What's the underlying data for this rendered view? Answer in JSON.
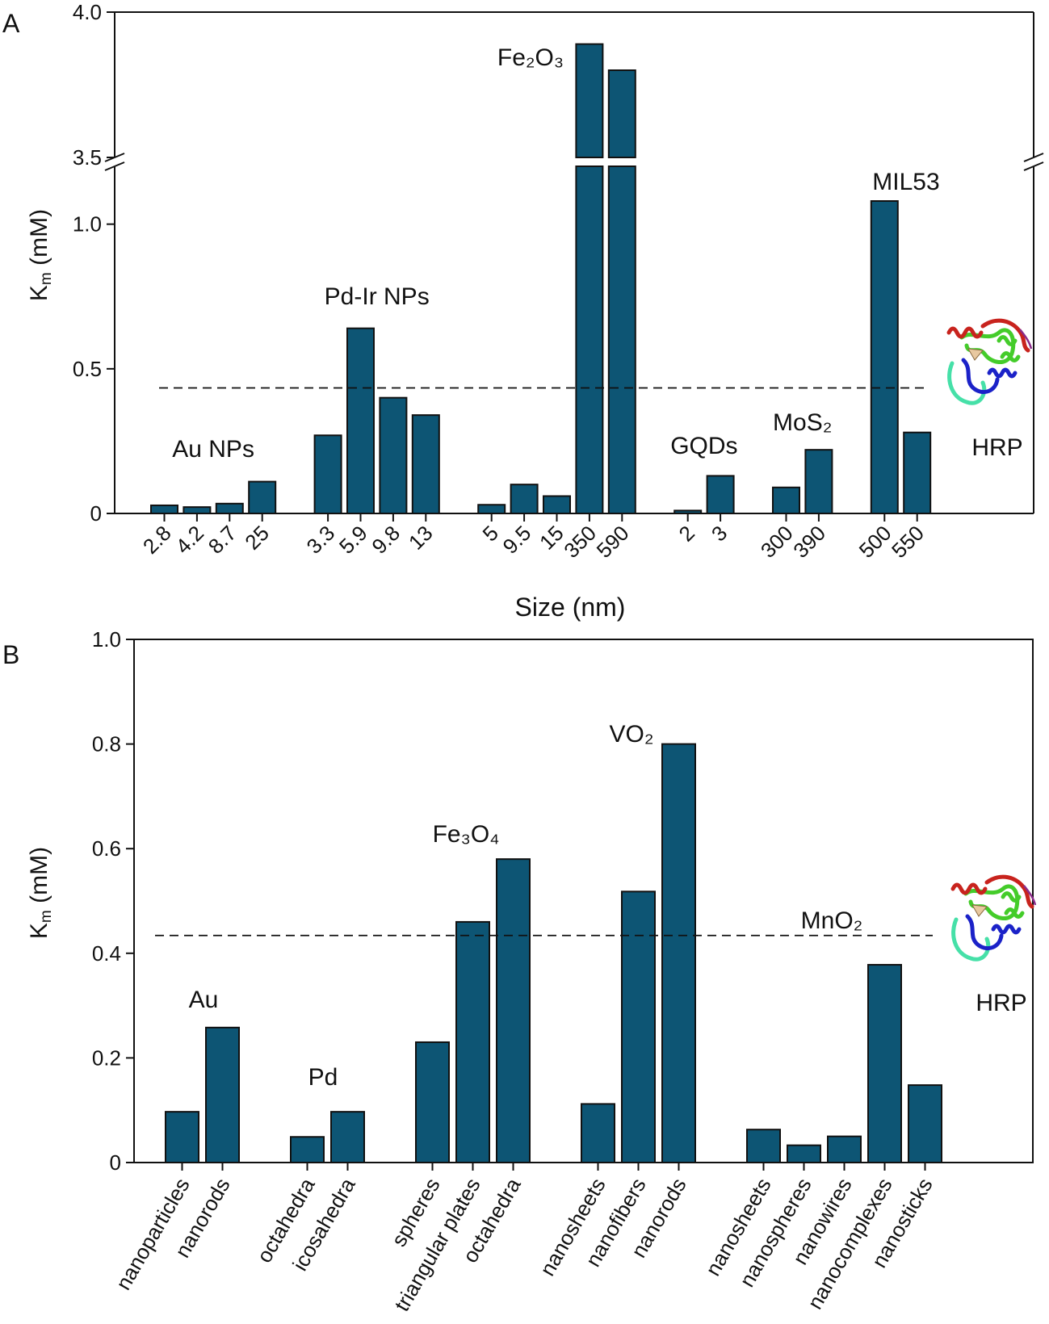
{
  "colors": {
    "bar_fill": "#0d5574",
    "bar_stroke": "#111111",
    "axis": "#111111",
    "reference_line": "#111111",
    "hrp_red": "#c8231d",
    "hrp_green": "#44cc2a",
    "hrp_cyan": "#46e0a8",
    "hrp_blue": "#1b22c8",
    "hrp_magenta": "#8a2b8a"
  },
  "chart_data": [
    {
      "panel": "A",
      "type": "bar",
      "xlabel": "Size (nm)",
      "ylabel_main": "K",
      "ylabel_sub": "m",
      "ylabel_unit": " (mM)",
      "lower_ylim": [
        0,
        1.2
      ],
      "upper_ylim": [
        3.5,
        4.0
      ],
      "y_ticks_lower": [
        {
          "value": 0,
          "label": "0"
        },
        {
          "value": 0.5,
          "label": "0.5"
        },
        {
          "value": 1.0,
          "label": "1.0"
        }
      ],
      "y_ticks_upper": [
        {
          "value": 3.5,
          "label": "3.5"
        },
        {
          "value": 4.0,
          "label": "4.0"
        }
      ],
      "reference_value": 0.434,
      "reference_label": "HRP",
      "groups": [
        {
          "name": "Au NPs",
          "categories": [
            "2.8",
            "4.2",
            "8.7",
            "25"
          ],
          "values": [
            0.028,
            0.022,
            0.034,
            0.11
          ]
        },
        {
          "name": "Pd-Ir NPs",
          "categories": [
            "3.3",
            "5.9",
            "9.8",
            "13"
          ],
          "values": [
            0.27,
            0.64,
            0.4,
            0.34
          ]
        },
        {
          "name": "Fe₂O₃",
          "categories": [
            "5",
            "9.5",
            "15",
            "350",
            "590"
          ],
          "values": [
            0.03,
            0.1,
            0.06,
            3.89,
            3.8
          ]
        },
        {
          "name": "GQDs",
          "categories": [
            "2",
            "3"
          ],
          "values": [
            0.01,
            0.13
          ]
        },
        {
          "name": "MoS₂",
          "categories": [
            "300",
            "390"
          ],
          "values": [
            0.09,
            0.22
          ]
        },
        {
          "name": "MIL53",
          "categories": [
            "500",
            "550"
          ],
          "values": [
            1.08,
            0.28
          ]
        }
      ]
    },
    {
      "panel": "B",
      "type": "bar",
      "xlabel": "",
      "ylabel_main": "K",
      "ylabel_sub": "m",
      "ylabel_unit": " (mM)",
      "ylim": [
        0,
        1.0
      ],
      "y_ticks": [
        {
          "value": 0,
          "label": "0"
        },
        {
          "value": 0.2,
          "label": "0.2"
        },
        {
          "value": 0.4,
          "label": "0.4"
        },
        {
          "value": 0.6,
          "label": "0.6"
        },
        {
          "value": 0.8,
          "label": "0.8"
        },
        {
          "value": 1.0,
          "label": "1.0"
        }
      ],
      "reference_value": 0.434,
      "reference_label": "HRP",
      "groups": [
        {
          "name": "Au",
          "categories": [
            "nanoparticles",
            "nanorods"
          ],
          "values": [
            0.097,
            0.258
          ]
        },
        {
          "name": "Pd",
          "categories": [
            "octahedra",
            "icosahedra"
          ],
          "values": [
            0.049,
            0.097
          ]
        },
        {
          "name": "Fe₃O₄",
          "categories": [
            "spheres",
            "triangular plates",
            "octahedra"
          ],
          "values": [
            0.23,
            0.46,
            0.58
          ]
        },
        {
          "name": "VO₂",
          "categories": [
            "nanosheets",
            "nanofibers",
            "nanorods"
          ],
          "values": [
            0.112,
            0.518,
            0.8
          ]
        },
        {
          "name": "MnO₂",
          "categories": [
            "nanosheets",
            "nanospheres",
            "nanowires",
            "nanocomplexes",
            "nanosticks"
          ],
          "values": [
            0.063,
            0.033,
            0.05,
            0.378,
            0.148
          ]
        }
      ]
    }
  ]
}
